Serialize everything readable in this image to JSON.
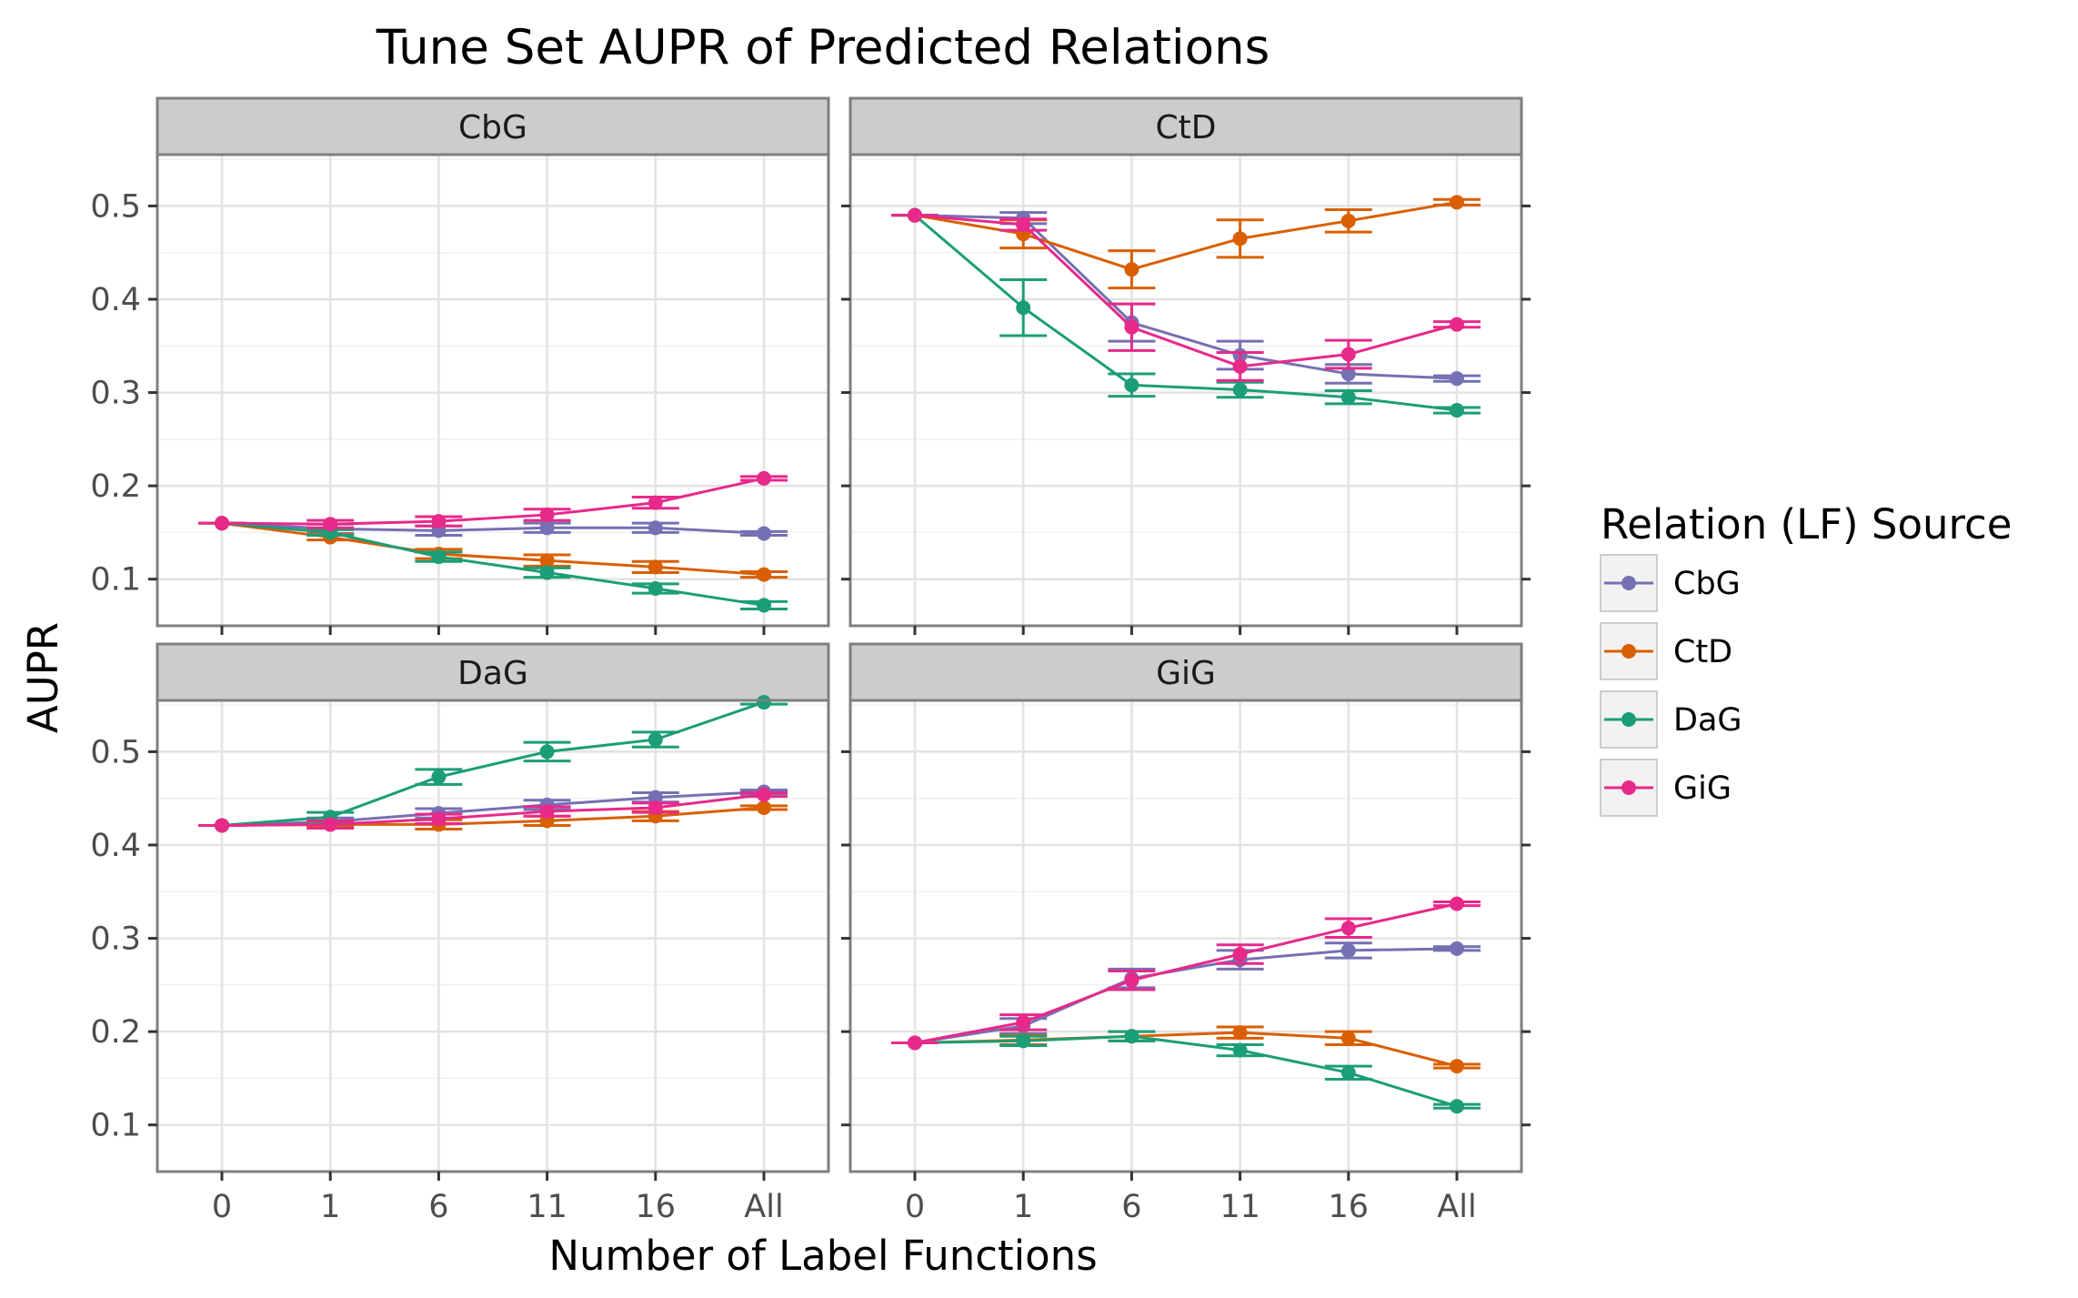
{
  "chart_data": {
    "type": "line",
    "title": "Tune Set AUPR of Predicted Relations",
    "xlabel": "Number of Label Functions",
    "ylabel": "AUPR",
    "categories": [
      "0",
      "1",
      "6",
      "11",
      "16",
      "All"
    ],
    "ytick_labels": [
      "0.1",
      "0.2",
      "0.3",
      "0.4",
      "0.5"
    ],
    "ylim": [
      0.05,
      0.555
    ],
    "grid": true,
    "legend": {
      "title": "Relation (LF) Source",
      "placement": "right",
      "entries": [
        "CbG",
        "CtD",
        "DaG",
        "GiG"
      ]
    },
    "colors": {
      "CbG": "#7570b3",
      "CtD": "#d95f02",
      "DaG": "#1b9e77",
      "GiG": "#e7298a"
    },
    "panels": [
      {
        "label": "CbG",
        "series": [
          {
            "name": "CbG",
            "values": [
              0.16,
              0.154,
              0.152,
              0.155,
              0.155,
              0.149
            ],
            "err": [
              0.0,
              0.005,
              0.005,
              0.005,
              0.005,
              0.002
            ]
          },
          {
            "name": "CtD",
            "values": [
              0.16,
              0.145,
              0.127,
              0.12,
              0.113,
              0.105
            ],
            "err": [
              0.0,
              0.003,
              0.005,
              0.006,
              0.006,
              0.003
            ]
          },
          {
            "name": "DaG",
            "values": [
              0.16,
              0.15,
              0.124,
              0.107,
              0.09,
              0.072
            ],
            "err": [
              0.0,
              0.003,
              0.005,
              0.005,
              0.005,
              0.004
            ]
          },
          {
            "name": "GiG",
            "values": [
              0.16,
              0.159,
              0.162,
              0.169,
              0.182,
              0.208
            ],
            "err": [
              0.0,
              0.004,
              0.005,
              0.006,
              0.006,
              0.002
            ]
          }
        ]
      },
      {
        "label": "CtD",
        "series": [
          {
            "name": "CbG",
            "values": [
              0.49,
              0.487,
              0.375,
              0.34,
              0.32,
              0.315
            ],
            "err": [
              0.0,
              0.006,
              0.02,
              0.015,
              0.01,
              0.003
            ]
          },
          {
            "name": "CtD",
            "values": [
              0.49,
              0.47,
              0.432,
              0.465,
              0.484,
              0.504
            ],
            "err": [
              0.0,
              0.015,
              0.02,
              0.02,
              0.012,
              0.003
            ]
          },
          {
            "name": "DaG",
            "values": [
              0.49,
              0.391,
              0.308,
              0.303,
              0.295,
              0.281
            ],
            "err": [
              0.0,
              0.03,
              0.012,
              0.008,
              0.007,
              0.003
            ]
          },
          {
            "name": "GiG",
            "values": [
              0.49,
              0.48,
              0.37,
              0.328,
              0.341,
              0.373
            ],
            "err": [
              0.0,
              0.006,
              0.025,
              0.015,
              0.015,
              0.003
            ]
          }
        ]
      },
      {
        "label": "DaG",
        "series": [
          {
            "name": "CbG",
            "values": [
              0.421,
              0.425,
              0.434,
              0.443,
              0.451,
              0.457
            ],
            "err": [
              0.0,
              0.004,
              0.005,
              0.005,
              0.005,
              0.002
            ]
          },
          {
            "name": "CtD",
            "values": [
              0.421,
              0.422,
              0.422,
              0.426,
              0.431,
              0.44
            ],
            "err": [
              0.0,
              0.003,
              0.005,
              0.005,
              0.005,
              0.002
            ]
          },
          {
            "name": "DaG",
            "values": [
              0.421,
              0.43,
              0.473,
              0.5,
              0.513,
              0.553
            ],
            "err": [
              0.0,
              0.005,
              0.008,
              0.01,
              0.008,
              0.002
            ]
          },
          {
            "name": "GiG",
            "values": [
              0.421,
              0.422,
              0.428,
              0.436,
              0.44,
              0.454
            ],
            "err": [
              0.0,
              0.004,
              0.005,
              0.005,
              0.005,
              0.002
            ]
          }
        ]
      },
      {
        "label": "GiG",
        "series": [
          {
            "name": "CbG",
            "values": [
              0.188,
              0.206,
              0.257,
              0.277,
              0.287,
              0.289
            ],
            "err": [
              0.0,
              0.008,
              0.01,
              0.01,
              0.008,
              0.002
            ]
          },
          {
            "name": "CtD",
            "values": [
              0.188,
              0.191,
              0.195,
              0.199,
              0.193,
              0.163
            ],
            "err": [
              0.0,
              0.005,
              0.005,
              0.006,
              0.007,
              0.002
            ]
          },
          {
            "name": "DaG",
            "values": [
              0.188,
              0.19,
              0.195,
              0.18,
              0.156,
              0.12
            ],
            "err": [
              0.0,
              0.005,
              0.005,
              0.006,
              0.007,
              0.002
            ]
          },
          {
            "name": "GiG",
            "values": [
              0.188,
              0.21,
              0.255,
              0.283,
              0.311,
              0.337
            ],
            "err": [
              0.0,
              0.008,
              0.01,
              0.01,
              0.01,
              0.002
            ]
          }
        ]
      }
    ]
  }
}
